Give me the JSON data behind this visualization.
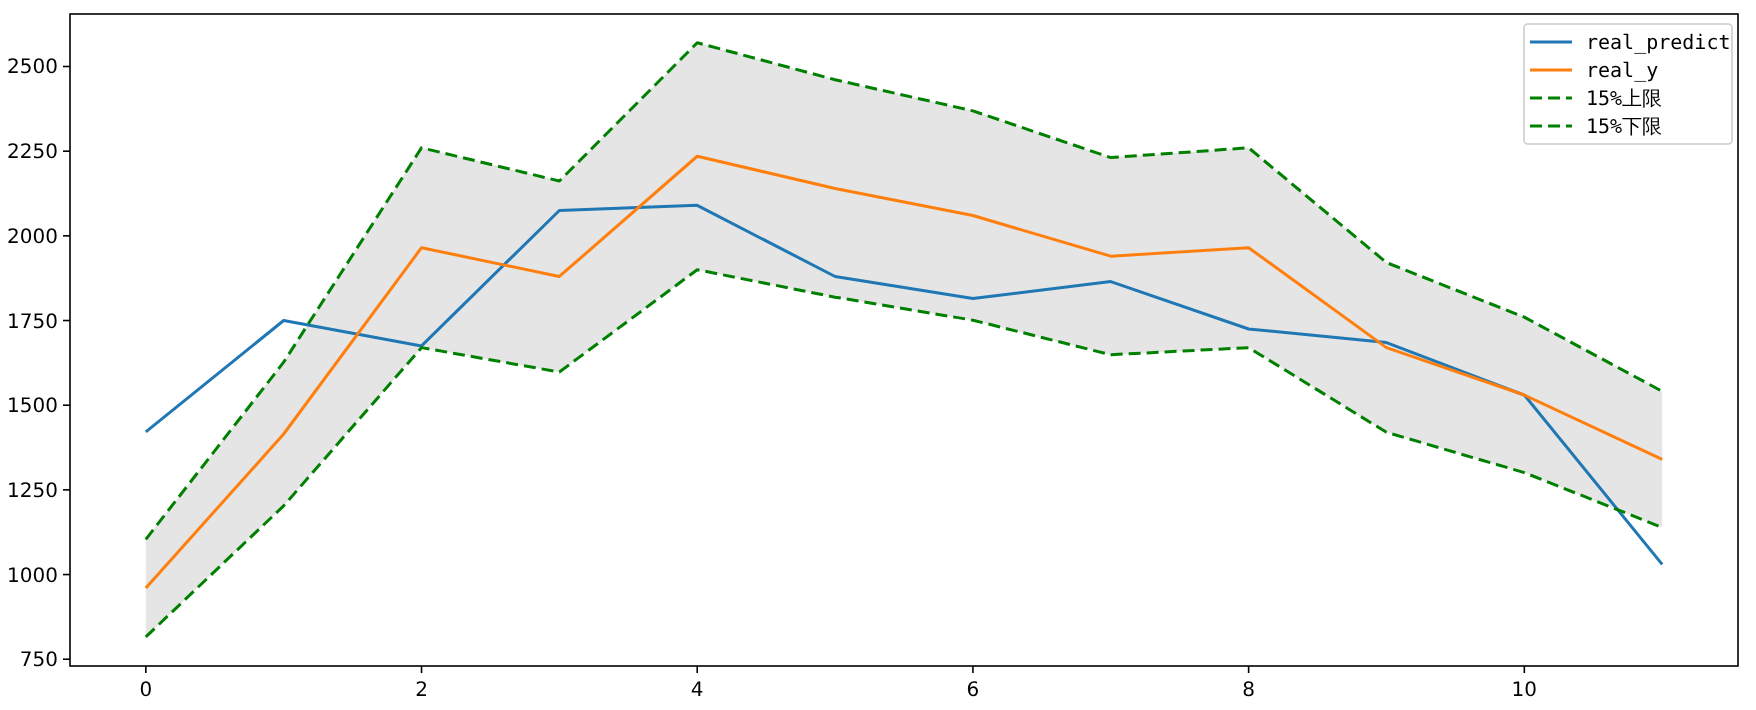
{
  "chart_data": {
    "type": "line",
    "x": [
      0,
      1,
      2,
      3,
      4,
      5,
      6,
      7,
      8,
      9,
      10,
      11
    ],
    "xlim": [
      -0.55,
      11.55
    ],
    "xticks": [
      0,
      2,
      4,
      6,
      8,
      10
    ],
    "ylim": [
      730,
      2655
    ],
    "yticks": [
      750,
      1000,
      1250,
      1500,
      1750,
      2000,
      2250,
      2500
    ],
    "grid": false,
    "legend": "top right",
    "series": [
      {
        "name": "real_predict",
        "color": "#1f77b4",
        "line_style": "solid",
        "values": [
          1421,
          1750,
          1675,
          2075,
          2090,
          1880,
          1815,
          1865,
          1725,
          1685,
          1530,
          1030
        ]
      },
      {
        "name": "real_y",
        "color": "#ff7f0e",
        "line_style": "solid",
        "values": [
          960,
          1415,
          1965,
          1880,
          2235,
          2140,
          2060,
          1940,
          1965,
          1670,
          1530,
          1340
        ],
        "lower": [
          816,
          1203,
          1670,
          1598,
          1900,
          1819,
          1751,
          1649,
          1670,
          1420,
          1301,
          1139
        ],
        "upper": [
          1104,
          1627,
          2260,
          2162,
          2570,
          2461,
          2369,
          2231,
          2260,
          1921,
          1760,
          1541
        ]
      },
      {
        "name": "15%上限",
        "color": "#008000",
        "line_style": "dashed",
        "values": [
          1104,
          1627,
          2260,
          2162,
          2570,
          2461,
          2369,
          2231,
          2260,
          1921,
          1760,
          1541
        ]
      },
      {
        "name": "15%下限",
        "color": "#008000",
        "line_style": "dashed",
        "values": [
          816,
          1203,
          1670,
          1598,
          1900,
          1819,
          1751,
          1649,
          1670,
          1420,
          1301,
          1139
        ]
      }
    ]
  }
}
